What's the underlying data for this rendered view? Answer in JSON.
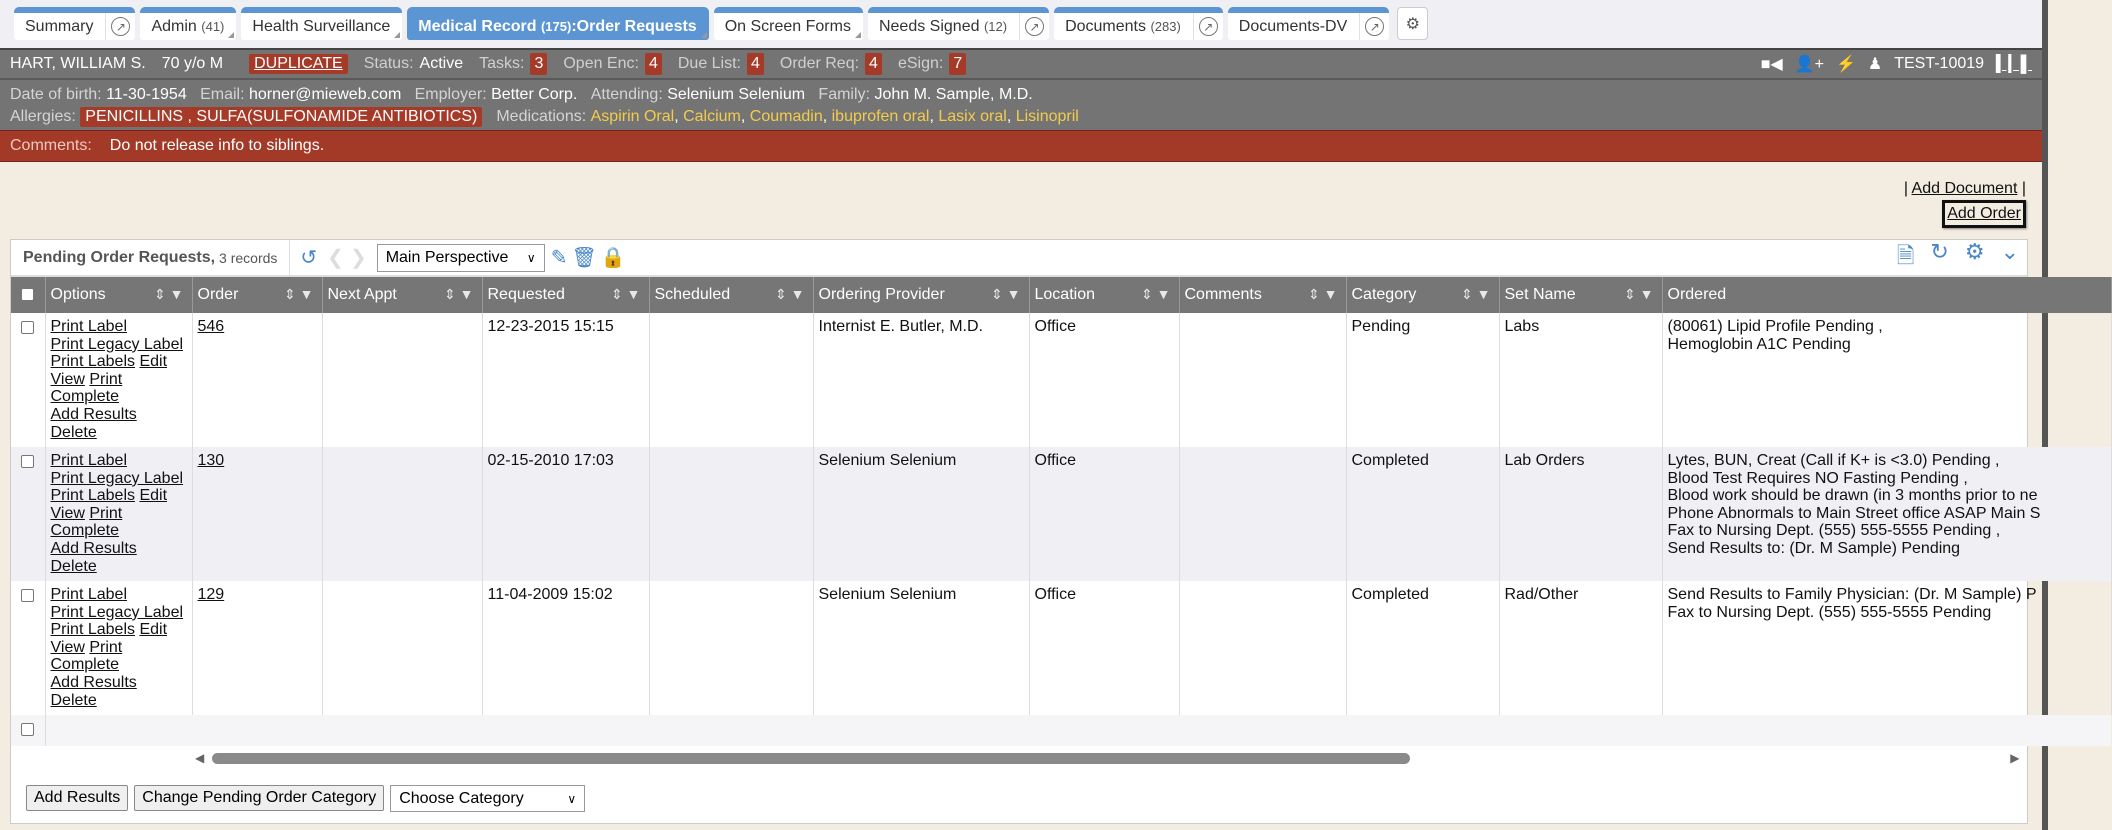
{
  "tabs": [
    {
      "label": "Summary",
      "count": "",
      "popout": true,
      "active": false
    },
    {
      "label": "Admin",
      "count": "(41)",
      "popout": false,
      "active": false
    },
    {
      "label": "Health Surveillance",
      "count": "",
      "popout": false,
      "active": false
    },
    {
      "label": "Medical Record",
      "count": "(175)",
      "suffix": ":Order Requests",
      "popout": false,
      "active": true
    },
    {
      "label": "On Screen Forms",
      "count": "",
      "popout": false,
      "active": false
    },
    {
      "label": "Needs Signed",
      "count": "(12)",
      "popout": true,
      "active": false
    },
    {
      "label": "Documents",
      "count": "(283)",
      "popout": true,
      "active": false
    },
    {
      "label": "Documents-DV",
      "count": "",
      "popout": true,
      "active": false
    }
  ],
  "patient": {
    "name": "HART, WILLIAM S.",
    "age": "70 y/o M",
    "duplicate": "DUPLICATE",
    "status_label": "Status:",
    "status": "Active",
    "tasks_label": "Tasks:",
    "tasks": "3",
    "open_enc_label": "Open Enc:",
    "open_enc": "4",
    "due_label": "Due List:",
    "due": "4",
    "orderreq_label": "Order Req:",
    "orderreq": "4",
    "esign_label": "eSign:",
    "esign": "7",
    "id": "TEST-10019",
    "dob_label": "Date of birth:",
    "dob": "11-30-1954",
    "email_label": "Email:",
    "email": "horner@mieweb.com",
    "employer_label": "Employer:",
    "employer": "Better Corp.",
    "attending_label": "Attending:",
    "attending": "Selenium Selenium",
    "family_label": "Family:",
    "family": "John M. Sample, M.D.",
    "allergies_label": "Allergies:",
    "allergies": "PENICILLINS , SULFA(SULFONAMIDE ANTIBIOTICS)",
    "medications_label": "Medications:",
    "medications": [
      "Aspirin Oral",
      "Calcium",
      "Coumadin",
      "ibuprofen oral",
      "Lasix oral",
      "Lisinopril"
    ],
    "comments_label": "Comments:",
    "comments": "Do not release info to siblings."
  },
  "links": {
    "add_document": "Add Document",
    "add_order": "Add Order"
  },
  "panel": {
    "title": "Pending Order Requests,",
    "records": "3 records",
    "perspective": "Main Perspective"
  },
  "columns": [
    "Options",
    "Order",
    "Next Appt",
    "Requested",
    "Scheduled",
    "Ordering Provider",
    "Location",
    "Comments",
    "Category",
    "Set Name",
    "Ordered"
  ],
  "option_lines": [
    [
      "Print Label"
    ],
    [
      "Print Legacy Label"
    ],
    [
      "Print Labels",
      "Edit"
    ],
    [
      "View",
      "Print"
    ],
    [
      "Complete"
    ],
    [
      "Add Results"
    ],
    [
      "Delete"
    ]
  ],
  "rows": [
    {
      "order": "546",
      "next_appt": "",
      "requested": "12-23-2015 15:15",
      "scheduled": "",
      "provider": "Internist E. Butler, M.D.",
      "location": "Office",
      "comments": "",
      "category": "Pending",
      "set_name": "Labs",
      "ordered": [
        "(80061) Lipid Profile Pending ,",
        "Hemoglobin A1C Pending"
      ]
    },
    {
      "order": "130",
      "next_appt": "",
      "requested": "02-15-2010 17:03",
      "scheduled": "",
      "provider": "Selenium Selenium",
      "location": "Office",
      "comments": "",
      "category": "Completed",
      "set_name": "Lab Orders",
      "ordered": [
        "Lytes, BUN, Creat (Call if K+ is <3.0) Pending ,",
        "Blood Test Requires NO Fasting Pending ,",
        "Blood work should be drawn (in 3 months prior to ne",
        "Phone Abnormals to Main Street office ASAP Main S",
        "Fax to Nursing Dept. (555) 555-5555 Pending ,",
        "Send Results to: (Dr. M Sample) Pending"
      ]
    },
    {
      "order": "129",
      "next_appt": "",
      "requested": "11-04-2009 15:02",
      "scheduled": "",
      "provider": "Selenium Selenium",
      "location": "Office",
      "comments": "",
      "category": "Completed",
      "set_name": "Rad/Other",
      "ordered": [
        "Send Results to Family Physician: (Dr. M Sample) P",
        "Fax to Nursing Dept. (555) 555-5555 Pending"
      ]
    }
  ],
  "bottom": {
    "add_results": "Add Results",
    "change_category": "Change Pending Order Category",
    "choose_category": "Choose Category"
  },
  "colors": {
    "accent": "#5b95d3",
    "alert": "#a33a27",
    "header": "#747474",
    "medication": "#f3cc4c"
  }
}
